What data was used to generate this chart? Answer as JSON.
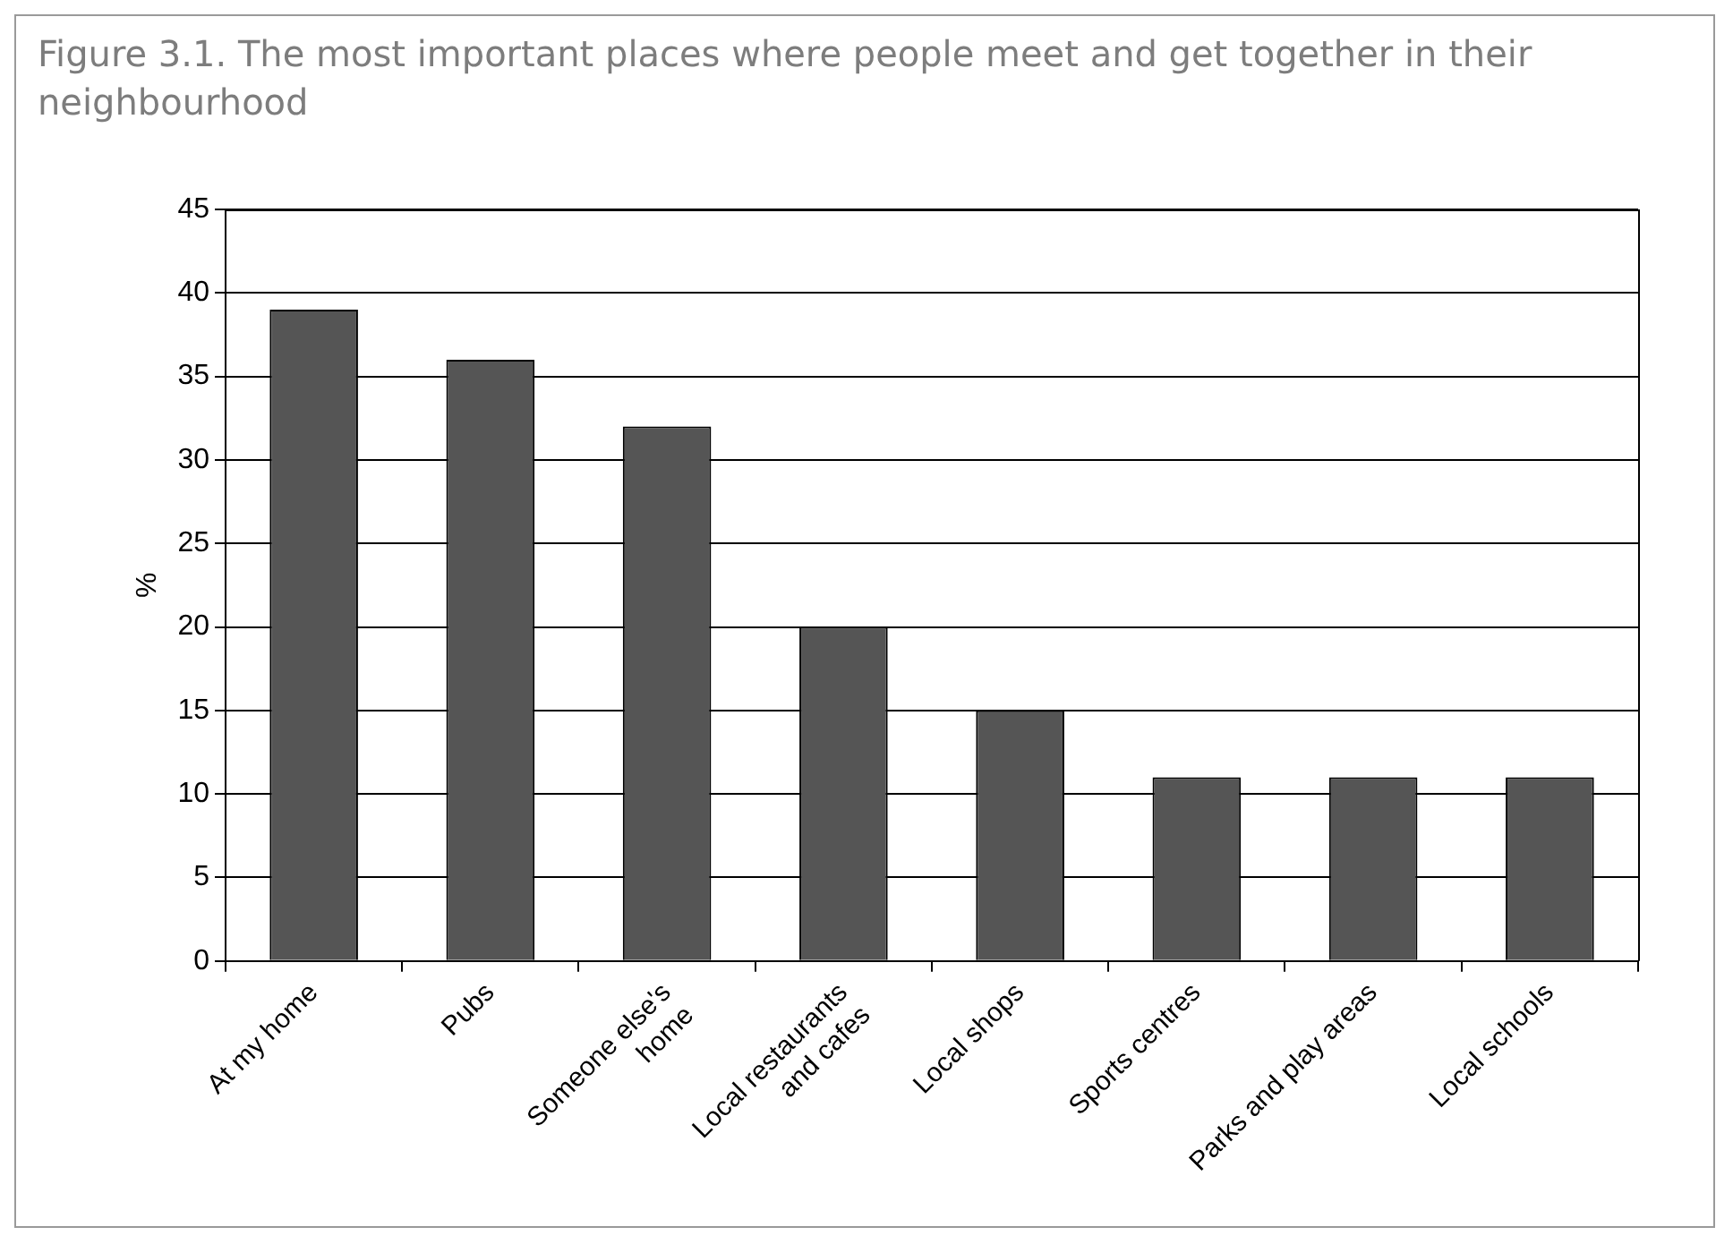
{
  "chart_data": {
    "type": "bar",
    "title": "Figure 3.1. The most important places where people meet and get together in their neighbourhood",
    "ylabel": "%",
    "categories": [
      "At my home",
      "Pubs",
      "Someone else's\nhome",
      "Local restaurants\nand cafes",
      "Local shops",
      "Sports centres",
      "Parks and play areas",
      "Local schools"
    ],
    "values": [
      39,
      36,
      32,
      20,
      15,
      11,
      11,
      11
    ],
    "color": "#555555",
    "ylim": [
      0,
      45
    ],
    "yticks": [
      0,
      5,
      10,
      15,
      20,
      25,
      30,
      35,
      40,
      45
    ],
    "grid": "y",
    "legend": false
  }
}
